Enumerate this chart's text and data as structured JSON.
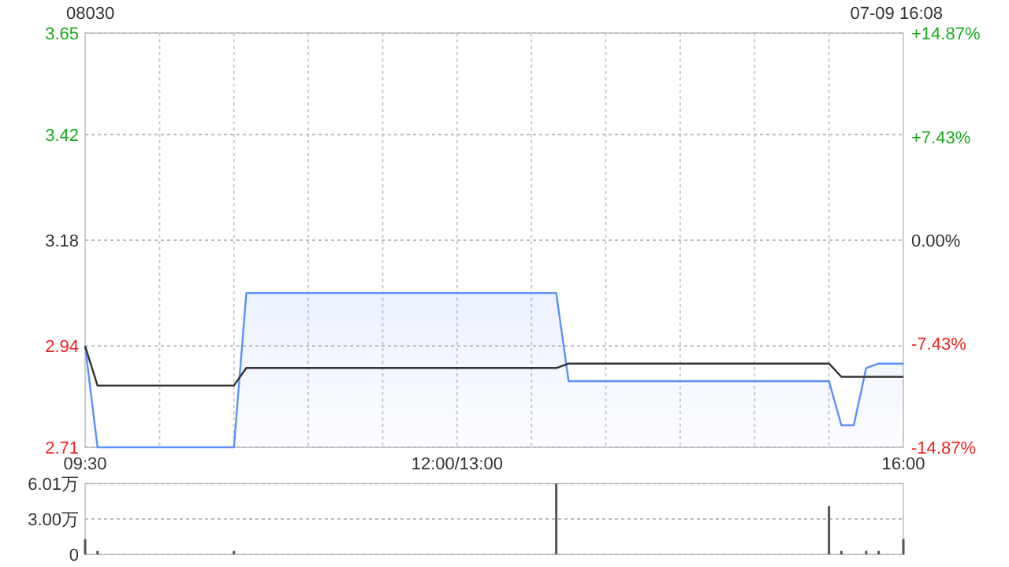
{
  "chart_data": [
    {
      "type": "line",
      "title": "08030",
      "annotations": [
        "07-09 16:08"
      ],
      "categories": [
        "09:30",
        null,
        null,
        null,
        null,
        null,
        null,
        null,
        null,
        null,
        null,
        null,
        null,
        null,
        null,
        null,
        null,
        null,
        null,
        null,
        null,
        null,
        null,
        null,
        null,
        null,
        null,
        null,
        null,
        null,
        "12:00/13:00",
        null,
        null,
        null,
        null,
        null,
        null,
        null,
        null,
        null,
        null,
        null,
        null,
        null,
        null,
        null,
        null,
        null,
        null,
        null,
        null,
        null,
        null,
        null,
        null,
        null,
        null,
        null,
        null,
        null,
        null,
        null,
        null,
        null,
        null,
        null,
        "16:00"
      ],
      "series": [
        {
          "type": "area",
          "color": "#5b8ff9",
          "values": [
            2.94,
            2.71,
            2.71,
            2.71,
            2.71,
            2.71,
            2.71,
            2.71,
            2.71,
            2.71,
            2.71,
            2.71,
            2.71,
            3.06,
            3.06,
            3.06,
            3.06,
            3.06,
            3.06,
            3.06,
            3.06,
            3.06,
            3.06,
            3.06,
            3.06,
            3.06,
            3.06,
            3.06,
            3.06,
            3.06,
            3.06,
            3.06,
            3.06,
            3.06,
            3.06,
            3.06,
            3.06,
            3.06,
            3.06,
            2.86,
            2.86,
            2.86,
            2.86,
            2.86,
            2.86,
            2.86,
            2.86,
            2.86,
            2.86,
            2.86,
            2.86,
            2.86,
            2.86,
            2.86,
            2.86,
            2.86,
            2.86,
            2.86,
            2.86,
            2.86,
            2.86,
            2.76,
            2.76,
            2.89,
            2.9,
            2.9,
            2.9
          ]
        },
        {
          "color": "#333333",
          "values": [
            2.94,
            2.85,
            2.85,
            2.85,
            2.85,
            2.85,
            2.85,
            2.85,
            2.85,
            2.85,
            2.85,
            2.85,
            2.85,
            2.89,
            2.89,
            2.89,
            2.89,
            2.89,
            2.89,
            2.89,
            2.89,
            2.89,
            2.89,
            2.89,
            2.89,
            2.89,
            2.89,
            2.89,
            2.89,
            2.89,
            2.89,
            2.89,
            2.89,
            2.89,
            2.89,
            2.89,
            2.89,
            2.89,
            2.89,
            2.9,
            2.9,
            2.9,
            2.9,
            2.9,
            2.9,
            2.9,
            2.9,
            2.9,
            2.9,
            2.9,
            2.9,
            2.9,
            2.9,
            2.9,
            2.9,
            2.9,
            2.9,
            2.9,
            2.9,
            2.9,
            2.9,
            2.87,
            2.87,
            2.87,
            2.87,
            2.87,
            2.87
          ]
        }
      ],
      "ylim": [
        2.71,
        3.65
      ],
      "yticks": [
        2.71,
        2.94,
        3.18,
        3.42,
        3.65
      ],
      "y2lim": [
        -14.87,
        14.87
      ],
      "y2ticks": [
        {
          "value": -14.87,
          "label": "-14.87%"
        },
        {
          "value": -7.43,
          "label": "-7.43%"
        },
        {
          "value": 0,
          "label": "0.00%"
        },
        {
          "value": 7.43,
          "label": "+7.43%"
        },
        {
          "value": 14.87,
          "label": "+14.87%"
        }
      ],
      "grid": true
    },
    {
      "type": "bar",
      "color": "#555555",
      "categories": [
        null,
        null,
        null,
        null,
        null,
        null,
        null,
        null,
        null,
        null,
        null,
        null,
        null,
        null,
        null,
        null,
        null,
        null,
        null,
        null,
        null,
        null,
        null,
        null,
        null,
        null,
        null,
        null,
        null,
        null,
        null,
        null,
        null,
        null,
        null,
        null,
        null,
        null,
        null,
        null,
        null,
        null,
        null,
        null,
        null,
        null,
        null,
        null,
        null,
        null,
        null,
        null,
        null,
        null,
        null,
        null,
        null,
        null,
        null,
        null,
        null,
        null,
        null,
        null,
        null,
        null,
        null
      ],
      "values": [
        1.3,
        0.3,
        null,
        null,
        null,
        null,
        null,
        null,
        null,
        null,
        null,
        null,
        0.3,
        null,
        null,
        null,
        null,
        null,
        null,
        null,
        null,
        null,
        null,
        null,
        null,
        null,
        null,
        null,
        null,
        null,
        null,
        null,
        null,
        null,
        null,
        null,
        null,
        null,
        6.0,
        null,
        null,
        null,
        null,
        null,
        null,
        null,
        null,
        null,
        null,
        null,
        null,
        null,
        null,
        null,
        null,
        null,
        null,
        null,
        null,
        null,
        4.1,
        0.3,
        null,
        0.3,
        0.3,
        null,
        1.3
      ],
      "ylim": [
        0,
        6.01
      ],
      "yticks": [
        0,
        {
          "value": 3,
          "label": "3.00万"
        },
        {
          "value": 6.01,
          "label": "6.01万"
        }
      ],
      "tick_labels": "y",
      "grid": "y"
    }
  ]
}
